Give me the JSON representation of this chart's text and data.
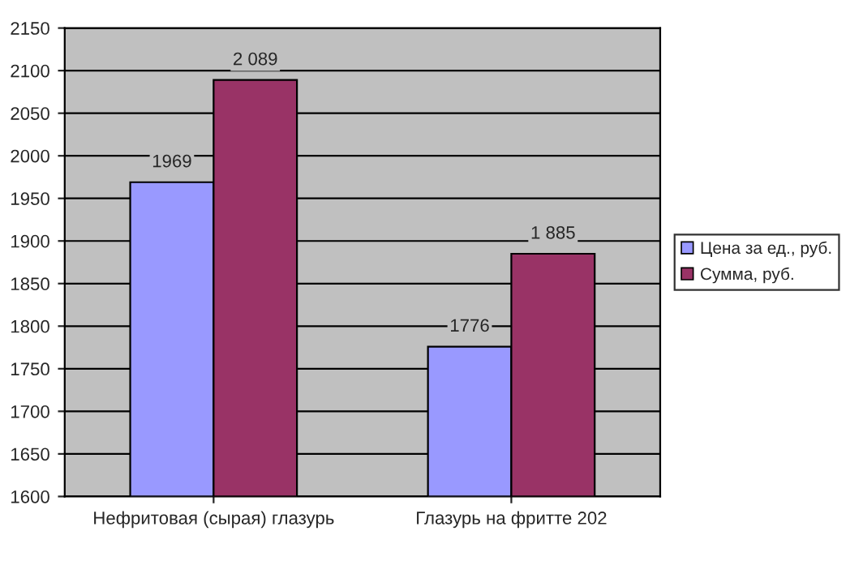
{
  "chart_data": {
    "type": "bar",
    "categories": [
      "Нефритовая (сырая) глазурь",
      "Глазурь на фритте 202"
    ],
    "series": [
      {
        "name": "Цена за ед., руб.",
        "color": "#9999ff",
        "values": [
          1969,
          1776
        ],
        "value_labels": [
          "1969",
          "1776"
        ]
      },
      {
        "name": "Сумма, руб.",
        "color": "#993366",
        "values": [
          2089,
          1885
        ],
        "value_labels": [
          "2 089",
          "1 885"
        ]
      }
    ],
    "ylim": [
      1600,
      2150
    ],
    "yticks": [
      1600,
      1650,
      1700,
      1750,
      1800,
      1850,
      1900,
      1950,
      2000,
      2050,
      2100,
      2150
    ],
    "grid": "y",
    "legend": "right"
  }
}
